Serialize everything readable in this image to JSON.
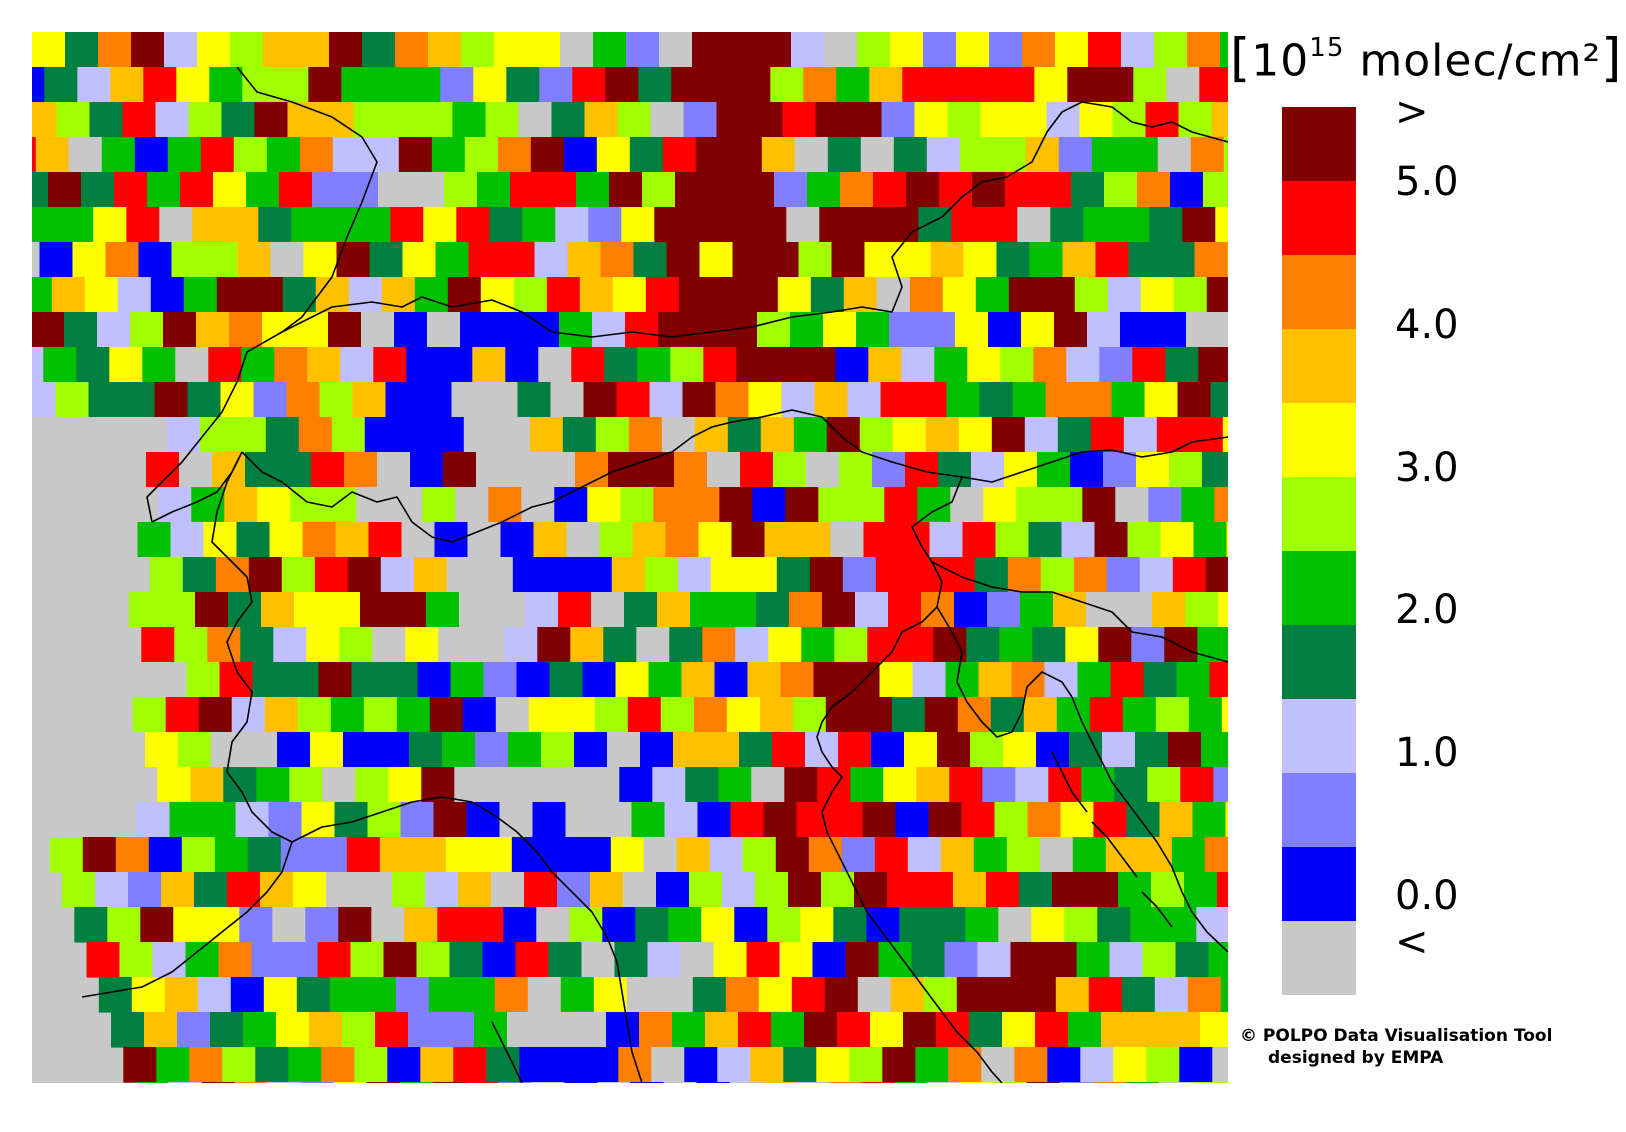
{
  "map": {
    "kind": "gridded satellite column map with country borders and coastlines",
    "no_data_color": "#c8c8c8",
    "border_color": "#000000"
  },
  "legend": {
    "unit_open": "[",
    "unit_base": "10",
    "unit_exp": "15",
    "unit_text": " molec/cm²",
    "unit_close": "]",
    "colors": [
      "#800000",
      "#ff0000",
      "#ff8000",
      "#ffc000",
      "#ffff00",
      "#a0ff00",
      "#00c000",
      "#008040",
      "#c0c0ff",
      "#8080ff",
      "#0000ff",
      "#c8c8c8"
    ],
    "labels": [
      ">",
      "5.0",
      "4.0",
      "3.0",
      "2.0",
      "1.0",
      "0.0",
      "<"
    ]
  },
  "credit": {
    "line1": "© POLPO Data Visualisation Tool",
    "line2": "designed by EMPA"
  }
}
